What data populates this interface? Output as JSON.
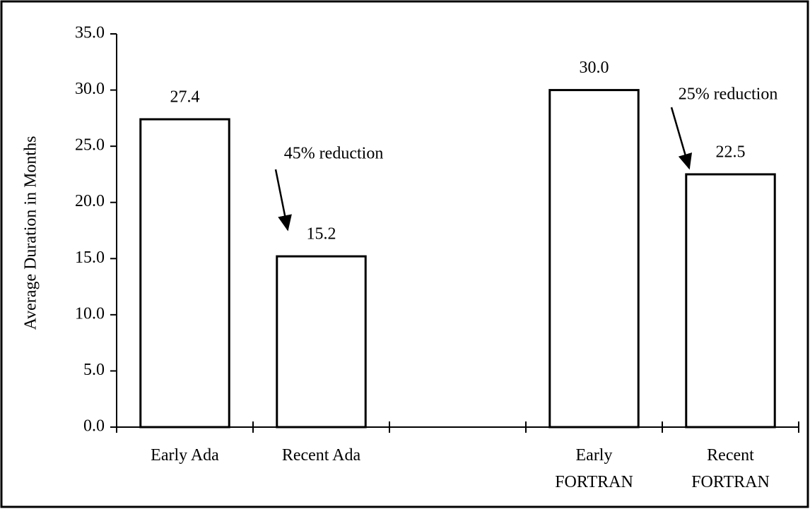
{
  "chart_data": {
    "type": "bar",
    "y_label": "Average Duration in Months",
    "categories": [
      "Early Ada",
      "Recent Ada",
      null,
      "Early\nFORTRAN",
      "Recent\nFORTRAN"
    ],
    "values": [
      27.4,
      15.2,
      null,
      30.0,
      22.5
    ],
    "value_labels": [
      "27.4",
      "15.2",
      null,
      "30.0",
      "22.5"
    ],
    "color": "#ffffff",
    "ylim": [
      0,
      35
    ],
    "yticks": [
      {
        "value": 0,
        "label": "0.0"
      },
      {
        "value": 5,
        "label": "5.0"
      },
      {
        "value": 10,
        "label": "10.0"
      },
      {
        "value": 15,
        "label": "15.0"
      },
      {
        "value": 20,
        "label": "20.0"
      },
      {
        "value": 25,
        "label": "25.0"
      },
      {
        "value": 30,
        "label": "30.0"
      },
      {
        "value": 35,
        "label": "35.0"
      }
    ],
    "annotations": [
      {
        "text": "45% reduction"
      },
      {
        "text": "25% reduction"
      }
    ],
    "grid": false
  }
}
